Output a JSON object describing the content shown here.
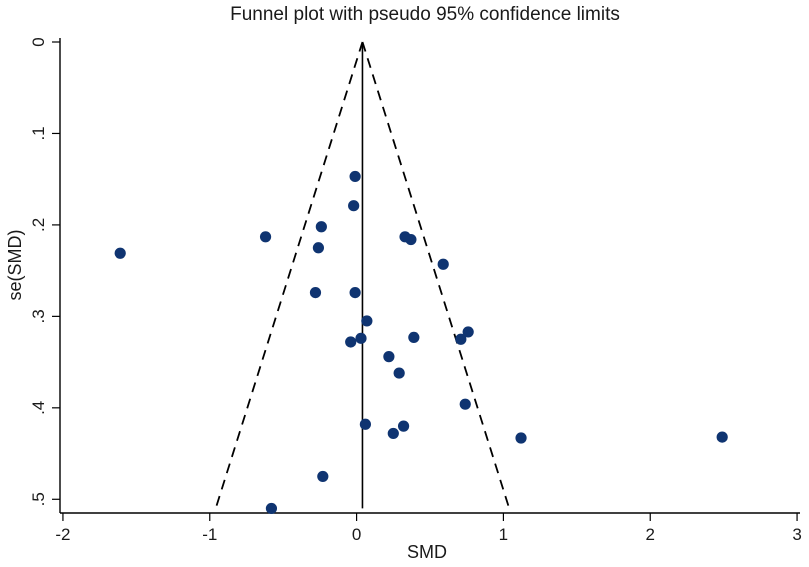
{
  "chart_data": {
    "type": "scatter",
    "title": "Funnel plot with pseudo 95% confidence limits",
    "xlabel": "SMD",
    "ylabel": "se(SMD)",
    "xlim": [
      -2.02,
      3.02
    ],
    "ylim": [
      0,
      0.515
    ],
    "y_reversed": true,
    "x_ticks": [
      -2,
      -1,
      0,
      1,
      2,
      3
    ],
    "x_tick_labels": [
      "-2",
      "-1",
      "0",
      "1",
      "2",
      "3"
    ],
    "y_ticks": [
      0,
      0.1,
      0.2,
      0.3,
      0.4,
      0.5
    ],
    "y_tick_labels": [
      "0",
      ".1",
      ".2",
      ".3",
      ".4",
      ".5"
    ],
    "pooled_estimate": 0.04,
    "ci_se_max": 0.51,
    "ci_multiplier": 1.96,
    "grid": false,
    "legend": "none",
    "point_color": "#0f3471",
    "points": [
      {
        "x": -0.01,
        "y": 0.147
      },
      {
        "x": -0.02,
        "y": 0.179
      },
      {
        "x": -0.24,
        "y": 0.202
      },
      {
        "x": -0.62,
        "y": 0.213
      },
      {
        "x": 0.33,
        "y": 0.213
      },
      {
        "x": 0.37,
        "y": 0.216
      },
      {
        "x": -0.26,
        "y": 0.225
      },
      {
        "x": -1.61,
        "y": 0.231
      },
      {
        "x": 0.59,
        "y": 0.243
      },
      {
        "x": -0.28,
        "y": 0.274
      },
      {
        "x": -0.01,
        "y": 0.274
      },
      {
        "x": 0.07,
        "y": 0.305
      },
      {
        "x": 0.76,
        "y": 0.317
      },
      {
        "x": 0.71,
        "y": 0.325
      },
      {
        "x": 0.39,
        "y": 0.323
      },
      {
        "x": 0.03,
        "y": 0.324
      },
      {
        "x": -0.04,
        "y": 0.328
      },
      {
        "x": 0.22,
        "y": 0.344
      },
      {
        "x": 0.29,
        "y": 0.362
      },
      {
        "x": 0.74,
        "y": 0.396
      },
      {
        "x": 0.06,
        "y": 0.418
      },
      {
        "x": 0.32,
        "y": 0.42
      },
      {
        "x": 0.25,
        "y": 0.428
      },
      {
        "x": 1.12,
        "y": 0.433
      },
      {
        "x": 2.49,
        "y": 0.432
      },
      {
        "x": -0.23,
        "y": 0.475
      },
      {
        "x": -0.58,
        "y": 0.51
      }
    ]
  }
}
